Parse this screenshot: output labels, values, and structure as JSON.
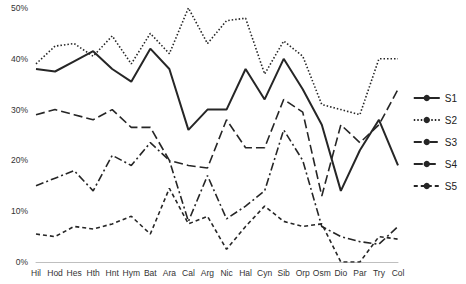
{
  "chart_data": {
    "type": "line",
    "categories": [
      "Hil",
      "Hod",
      "Hes",
      "Hth",
      "Hnt",
      "Hym",
      "Bat",
      "Ara",
      "Cal",
      "Arg",
      "Nic",
      "Hal",
      "Cyn",
      "Sib",
      "Orp",
      "Osm",
      "Dio",
      "Par",
      "Try",
      "Col"
    ],
    "series": [
      {
        "name": "S1",
        "color": "#262626",
        "line_style": "solid",
        "values": [
          38,
          37.5,
          39.5,
          41.5,
          38,
          35.5,
          42,
          38,
          26,
          30,
          30,
          38,
          32,
          40,
          34,
          27,
          14,
          22,
          28,
          19
        ]
      },
      {
        "name": "S2",
        "color": "#262626",
        "line_style": "dotted",
        "values": [
          39,
          42.5,
          43,
          40.5,
          44.5,
          39,
          45,
          41,
          50,
          43,
          47.5,
          48,
          37,
          43.5,
          40.5,
          31,
          30,
          29,
          40,
          40
        ]
      },
      {
        "name": "S3",
        "color": "#262626",
        "line_style": "dashdot",
        "values": [
          15,
          16.5,
          18,
          14,
          21,
          19,
          23.5,
          20,
          8,
          17,
          8.5,
          11,
          14,
          26,
          20,
          7,
          5,
          4,
          3.5,
          7
        ]
      },
      {
        "name": "S4",
        "color": "#262626",
        "line_style": "longdash",
        "values": [
          29,
          30,
          29,
          28,
          30,
          26.5,
          26.5,
          20,
          19,
          18.5,
          28,
          22.5,
          22.5,
          32,
          29.5,
          13,
          27,
          23.5,
          27,
          34
        ]
      },
      {
        "name": "S5",
        "color": "#262626",
        "line_style": "dashed",
        "values": [
          5.5,
          5,
          7,
          6.5,
          7.5,
          9,
          5.5,
          14.5,
          7.5,
          9,
          2.5,
          7,
          11,
          8,
          7,
          7.5,
          0,
          0,
          5,
          4.5
        ]
      }
    ],
    "ylim": [
      0,
      50
    ],
    "yticks": [
      {
        "value": 0,
        "label": "0%"
      },
      {
        "value": 10,
        "label": "10%"
      },
      {
        "value": 20,
        "label": "20%"
      },
      {
        "value": 30,
        "label": "30%"
      },
      {
        "value": 40,
        "label": "40%"
      },
      {
        "value": 50,
        "label": "50%"
      }
    ],
    "grid": false,
    "legend": "right"
  }
}
